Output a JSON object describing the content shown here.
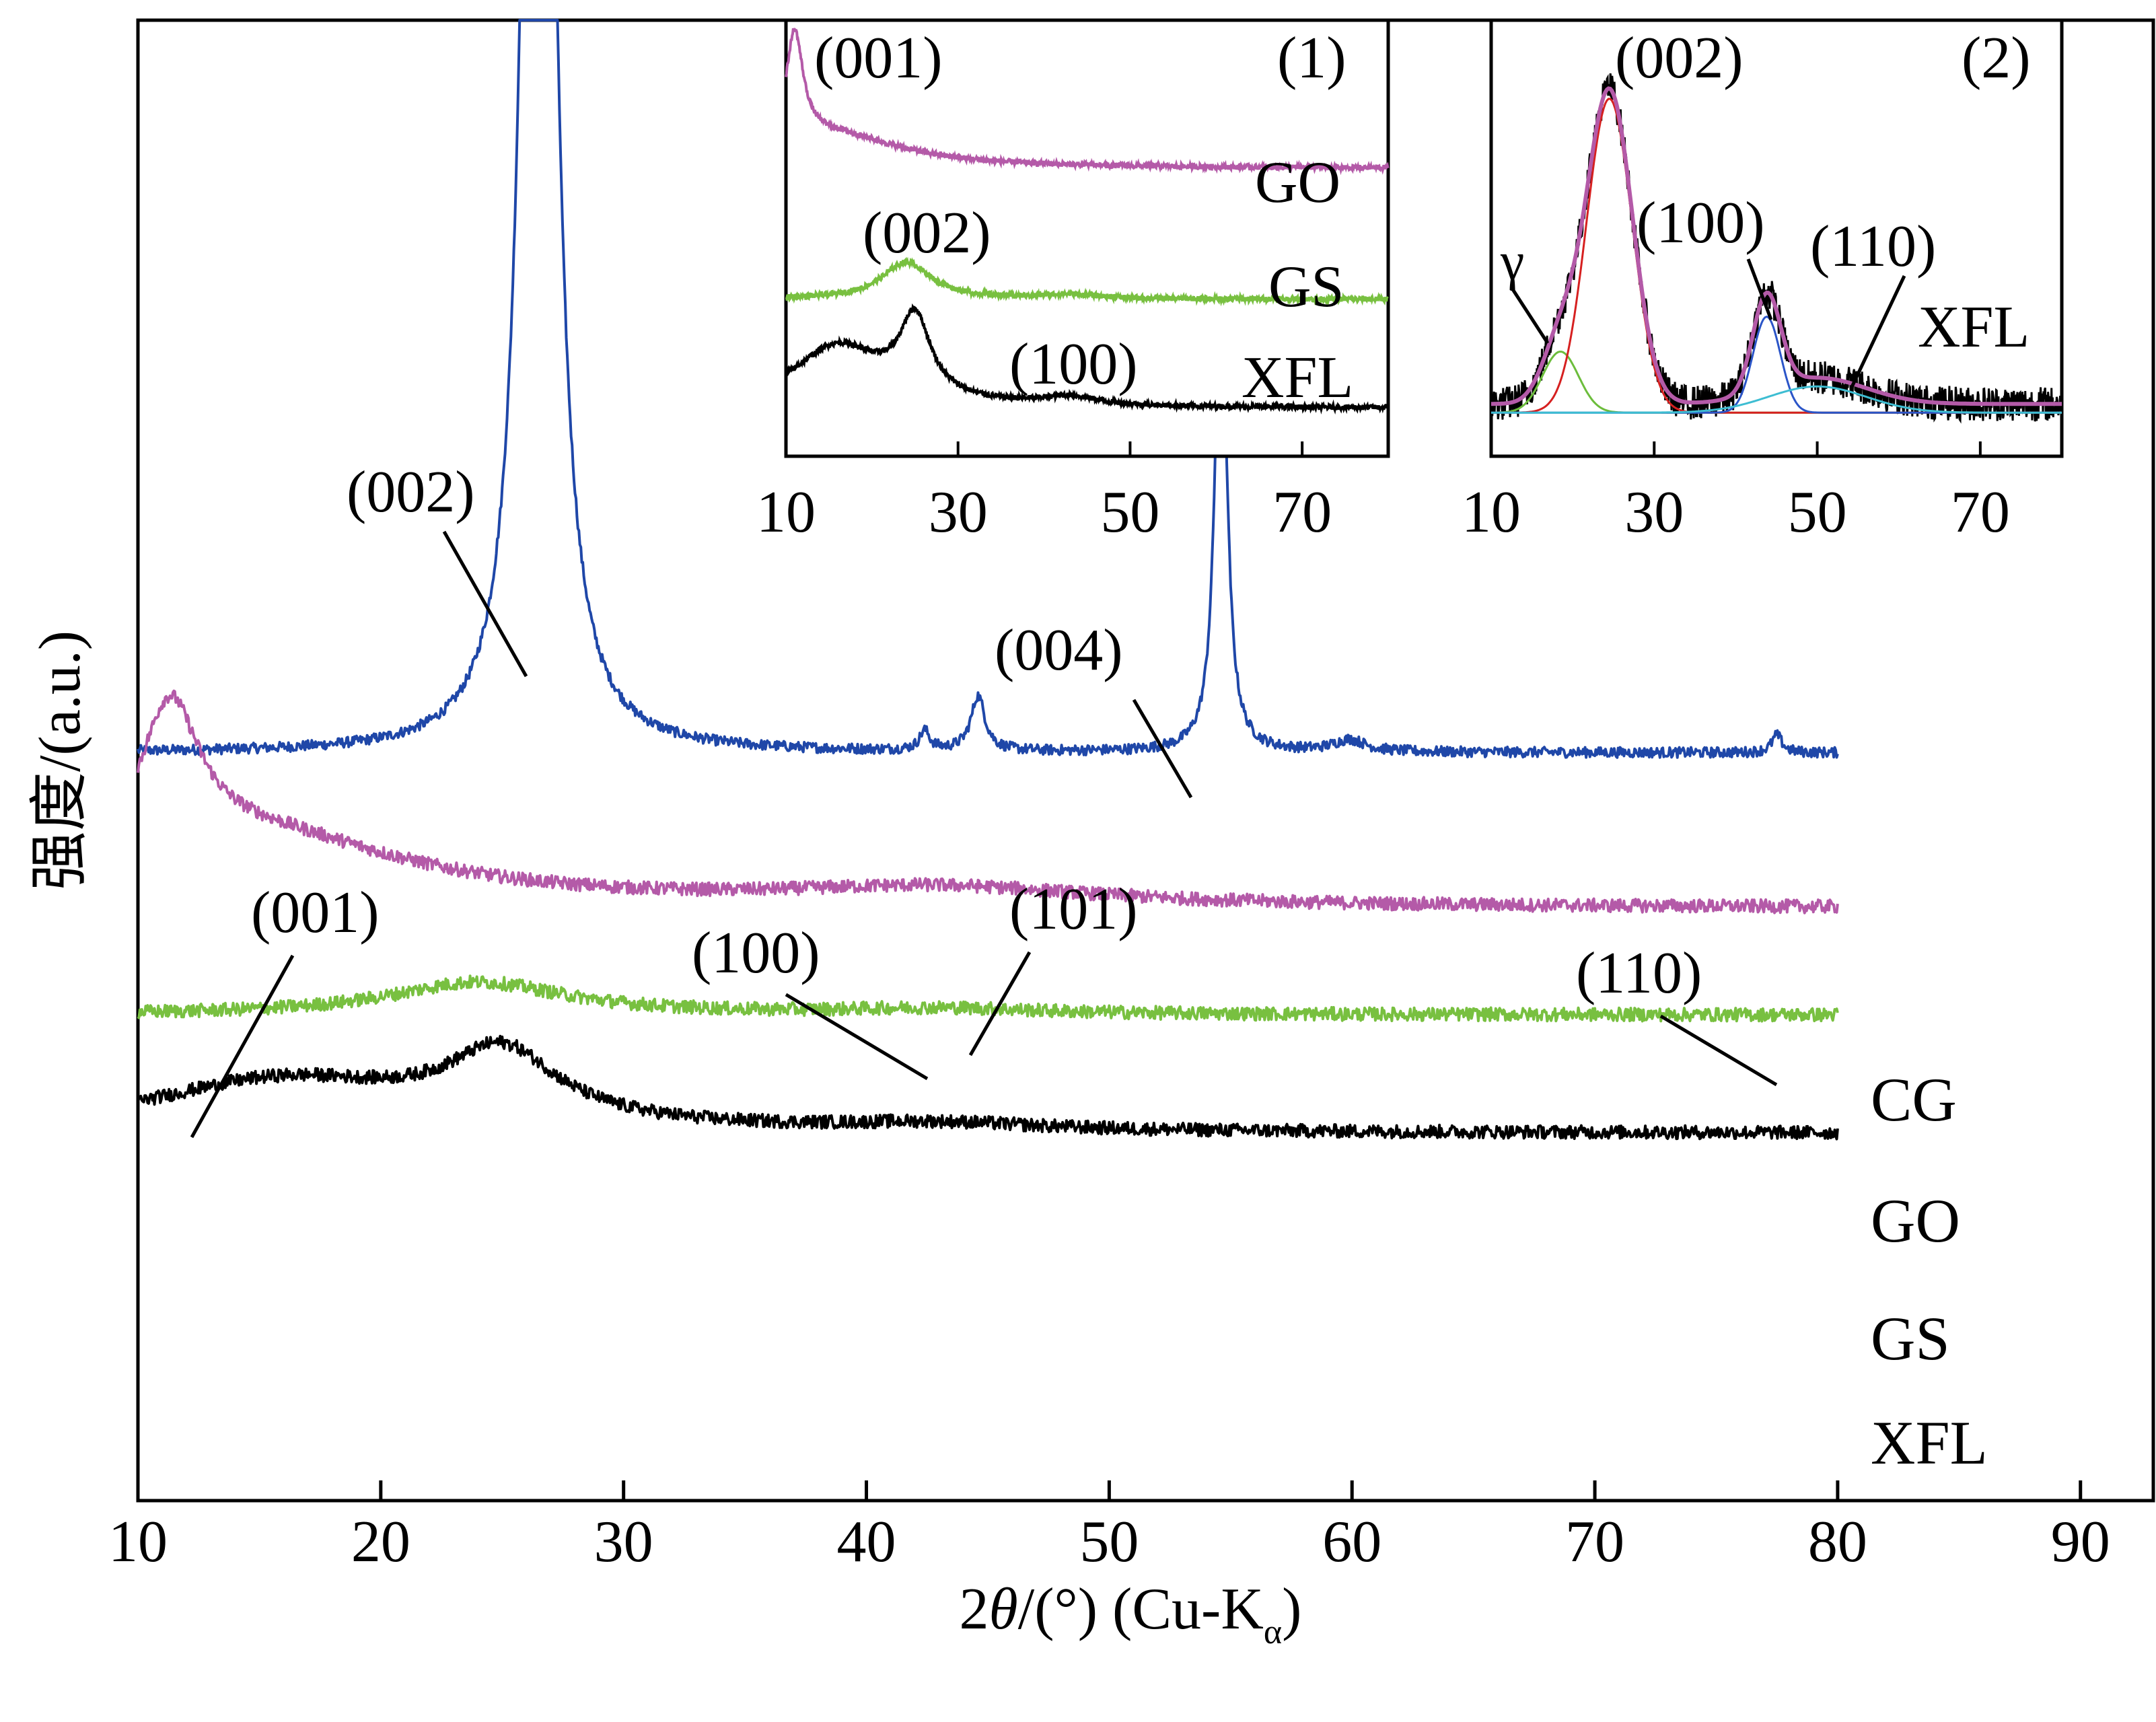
{
  "chart_data": {
    "type": "line",
    "ylabel": "强度/(a.u.)",
    "xlabel_main": "2",
    "xlabel_theta": "θ",
    "xlabel_rest": "/(°) (Cu-K",
    "xlabel_sub": "α",
    "xlabel_close": ")",
    "xlim": [
      10,
      93
    ],
    "xticks": [
      "10",
      "20",
      "30",
      "40",
      "50",
      "60",
      "70",
      "80",
      "90"
    ],
    "x_range": [
      10,
      80
    ],
    "grid": false,
    "colors": {
      "CG": "#1f47a8",
      "GO": "#b45aa8",
      "GS": "#78c040",
      "XFL": "#000000"
    },
    "series": [
      {
        "name": "CG",
        "baseline": 0.505,
        "noise": 0.0035,
        "peaks": [
          {
            "pos": 26.5,
            "height": 1.5,
            "width": 0.55
          },
          {
            "pos": 42.4,
            "height": 0.013,
            "width": 0.25
          },
          {
            "pos": 44.6,
            "height": 0.037,
            "width": 0.35
          },
          {
            "pos": 54.6,
            "height": 0.345,
            "width": 0.28
          },
          {
            "pos": 59.9,
            "height": 0.008,
            "width": 0.8
          },
          {
            "pos": 77.5,
            "height": 0.012,
            "width": 0.25
          }
        ]
      },
      {
        "name": "GO",
        "baseline": 0.4,
        "noise": 0.0045,
        "peaks": [
          {
            "pos": 11.3,
            "height": 0.1,
            "width": 1.5
          },
          {
            "pos": 14.5,
            "height": 0.05,
            "width": 8.0
          },
          {
            "pos": 43.0,
            "height": 0.012,
            "width": 8.0
          }
        ]
      },
      {
        "name": "GS",
        "baseline": 0.328,
        "noise": 0.0045,
        "peaks": [
          {
            "pos": 24.0,
            "height": 0.022,
            "width": 4.5
          },
          {
            "pos": 43.0,
            "height": 0.004,
            "width": 5.0
          }
        ]
      },
      {
        "name": "XFL",
        "baseline": 0.248,
        "noise": 0.0045,
        "peaks": [
          {
            "pos": 25.0,
            "height": 0.048,
            "width": 2.8
          },
          {
            "pos": 16.0,
            "height": 0.035,
            "width": 7.0
          },
          {
            "pos": 43.0,
            "height": 0.005,
            "width": 5.0
          }
        ]
      }
    ],
    "series_labels": [
      "CG",
      "GO",
      "GS",
      "XFL"
    ],
    "annotations": [
      "(002)",
      "(004)",
      "(001)",
      "(100)",
      "(101)",
      "(110)"
    ],
    "inset1": {
      "tag": "(1)",
      "xlim": [
        10,
        80
      ],
      "xticks": [
        "10",
        "30",
        "50",
        "70"
      ],
      "series": [
        {
          "name": "GO",
          "baseline": 0.66,
          "noise": 0.006,
          "peaks": [
            {
              "pos": 11.0,
              "height": 0.25,
              "width": 1.2
            },
            {
              "pos": 15.0,
              "height": 0.08,
              "width": 10.0
            }
          ]
        },
        {
          "name": "GS",
          "baseline": 0.36,
          "noise": 0.006,
          "peaks": [
            {
              "pos": 24.0,
              "height": 0.085,
              "width": 3.5
            },
            {
              "pos": 43.0,
              "height": 0.01,
              "width": 4.0
            }
          ]
        },
        {
          "name": "XFL",
          "baseline": 0.11,
          "noise": 0.006,
          "peaks": [
            {
              "pos": 25.0,
              "height": 0.18,
              "width": 2.2
            },
            {
              "pos": 16.0,
              "height": 0.14,
              "width": 6.5
            },
            {
              "pos": 43.0,
              "height": 0.02,
              "width": 4.0
            }
          ]
        }
      ],
      "series_labels": [
        "GO",
        "GS",
        "XFL"
      ],
      "annotations": [
        "(001)",
        "(002)",
        "(100)"
      ]
    },
    "inset2": {
      "tag": "(2)",
      "xlim": [
        10,
        80
      ],
      "xticks": [
        "10",
        "30",
        "50",
        "70"
      ],
      "series_label": "XFL",
      "raw_peaks": [
        {
          "pos": 24.5,
          "height": 0.72,
          "width": 2.8
        },
        {
          "pos": 18.5,
          "height": 0.14,
          "width": 2.2
        },
        {
          "pos": 43.8,
          "height": 0.22,
          "width": 1.7
        },
        {
          "pos": 50.0,
          "height": 0.06,
          "width": 6.0
        }
      ],
      "fit_components": [
        {
          "name": "γ",
          "pos": 18.5,
          "height": 0.14,
          "width": 2.2,
          "color": "#6cbd3c"
        },
        {
          "name": "(002)",
          "pos": 24.5,
          "height": 0.72,
          "width": 2.8,
          "color": "#d62020"
        },
        {
          "name": "(100)",
          "pos": 43.8,
          "height": 0.22,
          "width": 1.7,
          "color": "#2b55c8"
        },
        {
          "name": "(110)",
          "pos": 50.0,
          "height": 0.06,
          "width": 6.0,
          "color": "#3dbdd2"
        }
      ],
      "fit_color": "#b45aa8",
      "annotations": [
        "γ",
        "(002)",
        "(100)",
        "(110)"
      ]
    }
  }
}
